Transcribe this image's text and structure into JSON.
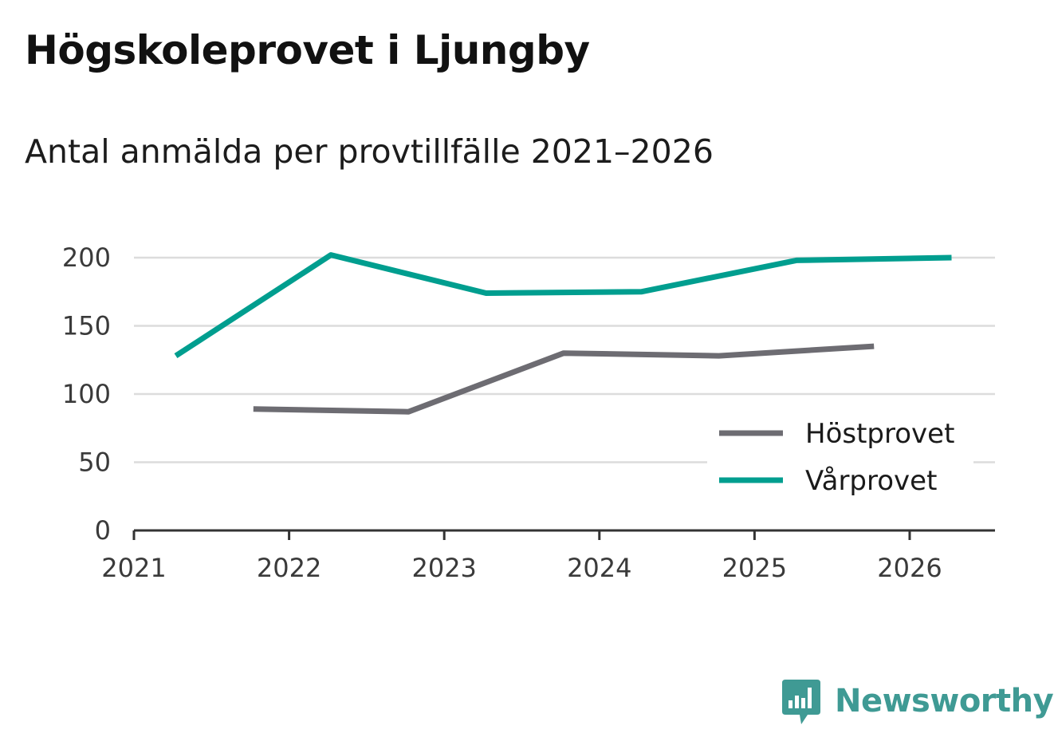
{
  "header": {
    "title": "Högskoleprovet i Ljungby",
    "subtitle": "Antal anmälda per provtillfälle 2021–2026"
  },
  "brand": {
    "name": "Newsworthy",
    "color": "#3f9a94"
  },
  "chart_data": {
    "type": "line",
    "title": "Högskoleprovet i Ljungby",
    "subtitle": "Antal anmälda per provtillfälle 2021–2026",
    "xlabel": "",
    "ylabel": "",
    "xlim": [
      2021,
      2026.55
    ],
    "ylim": [
      0,
      200
    ],
    "x_ticks": [
      2021,
      2022,
      2023,
      2024,
      2025,
      2026
    ],
    "x_tick_labels": [
      "2021",
      "2022",
      "2023",
      "2024",
      "2025",
      "2026"
    ],
    "y_ticks": [
      0,
      50,
      100,
      150,
      200
    ],
    "y_tick_labels": [
      "0",
      "50",
      "100",
      "150",
      "200"
    ],
    "grid": true,
    "legend_position": "bottom-right",
    "series": [
      {
        "name": "Höstprovet",
        "color": "#6d6c72",
        "x": [
          2021.77,
          2022.77,
          2023.77,
          2024.77,
          2025.77
        ],
        "values": [
          89,
          87,
          130,
          128,
          135
        ]
      },
      {
        "name": "Vårprovet",
        "color": "#009e8f",
        "x": [
          2021.27,
          2022.27,
          2023.27,
          2024.27,
          2025.27,
          2026.27
        ],
        "values": [
          128,
          202,
          174,
          175,
          198,
          200
        ]
      }
    ]
  }
}
